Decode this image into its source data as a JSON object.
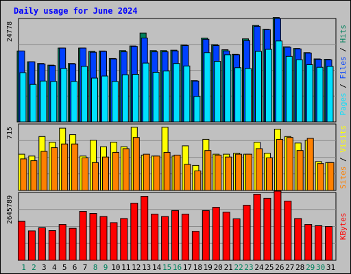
{
  "title": "Daily usage for June 2024",
  "colors": {
    "background": "#c0c0c0",
    "title": "#0000ff",
    "hits": "#00805c",
    "files": "#0040ff",
    "pages": "#00e0ff",
    "visits": "#ffff00",
    "sites": "#ff8000",
    "kbytes": "#ff0000",
    "weekday_label": "#000000",
    "weekend_label": "#00805c"
  },
  "chart_data": [
    {
      "type": "bar",
      "panel": "hits-files-pages",
      "ymax": 24778,
      "ymax_label": "24778",
      "right_label": {
        "parts": [
          "Pages",
          "Files",
          "Hits"
        ],
        "separator": " / "
      },
      "categories": [
        "1",
        "2",
        "3",
        "4",
        "5",
        "6",
        "7",
        "8",
        "9",
        "10",
        "11",
        "12",
        "13",
        "14",
        "15",
        "16",
        "17",
        "18",
        "19",
        "20",
        "21",
        "22",
        "23",
        "24",
        "25",
        "26",
        "27",
        "28",
        "29",
        "30",
        "31"
      ],
      "weekend_days": [
        "1",
        "2",
        "8",
        "9",
        "15",
        "16",
        "22",
        "23",
        "29",
        "30"
      ],
      "series": [
        {
          "name": "Hits",
          "values": [
            17000,
            14400,
            14000,
            13600,
            17700,
            14000,
            17700,
            16900,
            17000,
            15200,
            17100,
            18200,
            21300,
            17100,
            17100,
            17200,
            18400,
            9900,
            20100,
            18500,
            17300,
            16200,
            19900,
            23100,
            22200,
            25000,
            18000,
            17600,
            16600,
            15100,
            15000
          ]
        },
        {
          "name": "Files",
          "values": [
            17000,
            14400,
            13900,
            13500,
            17700,
            13900,
            17700,
            16700,
            16900,
            15100,
            16800,
            18100,
            20100,
            16800,
            16800,
            17000,
            18300,
            9800,
            19800,
            18300,
            17000,
            16100,
            19500,
            22900,
            22100,
            24800,
            17900,
            17500,
            16500,
            15000,
            14900
          ]
        },
        {
          "name": "Pages",
          "values": [
            11800,
            9000,
            9800,
            9700,
            12800,
            9700,
            13300,
            10500,
            11000,
            9700,
            11300,
            11400,
            14100,
            11900,
            12200,
            14000,
            13400,
            6100,
            16600,
            14500,
            16100,
            13000,
            12800,
            16900,
            17400,
            19400,
            15700,
            14900,
            13700,
            13100,
            13300
          ]
        }
      ]
    },
    {
      "type": "bar",
      "panel": "visits-sites",
      "ymax": 715,
      "ymax_label": "715",
      "right_label": {
        "parts": [
          "Sites",
          "Visits"
        ],
        "separator": " / "
      },
      "categories": [
        "1",
        "2",
        "3",
        "4",
        "5",
        "6",
        "7",
        "8",
        "9",
        "10",
        "11",
        "12",
        "13",
        "14",
        "15",
        "16",
        "17",
        "18",
        "19",
        "20",
        "21",
        "22",
        "23",
        "24",
        "25",
        "26",
        "27",
        "28",
        "29",
        "30",
        "31"
      ],
      "series": [
        {
          "name": "Visits",
          "values": [
            390,
            370,
            580,
            520,
            670,
            600,
            370,
            540,
            470,
            520,
            470,
            680,
            380,
            370,
            680,
            370,
            480,
            270,
            550,
            390,
            390,
            400,
            390,
            520,
            400,
            660,
            580,
            510,
            540,
            310,
            300
          ]
        },
        {
          "name": "Sites",
          "values": [
            340,
            320,
            420,
            460,
            500,
            500,
            350,
            300,
            360,
            410,
            450,
            570,
            390,
            370,
            410,
            380,
            280,
            210,
            430,
            380,
            360,
            390,
            390,
            450,
            350,
            550,
            570,
            430,
            560,
            290,
            300
          ]
        }
      ]
    },
    {
      "type": "bar",
      "panel": "kbytes",
      "ymax": 2645789,
      "ymax_label": "2645789",
      "right_label": {
        "parts": [
          "KBytes"
        ],
        "separator": ""
      },
      "categories": [
        "1",
        "2",
        "3",
        "4",
        "5",
        "6",
        "7",
        "8",
        "9",
        "10",
        "11",
        "12",
        "13",
        "14",
        "15",
        "16",
        "17",
        "18",
        "19",
        "20",
        "21",
        "22",
        "23",
        "24",
        "25",
        "26",
        "27",
        "28",
        "29",
        "30",
        "31"
      ],
      "series": [
        {
          "name": "KBytes",
          "values": [
            1520000,
            1150000,
            1270000,
            1160000,
            1400000,
            1250000,
            1910000,
            1830000,
            1710000,
            1470000,
            1630000,
            2230000,
            2500000,
            1800000,
            1710000,
            1940000,
            1800000,
            1130000,
            1940000,
            2070000,
            1880000,
            1620000,
            2150000,
            2580000,
            2420000,
            2700000,
            2310000,
            1630000,
            1400000,
            1350000,
            1320000
          ]
        }
      ]
    }
  ]
}
